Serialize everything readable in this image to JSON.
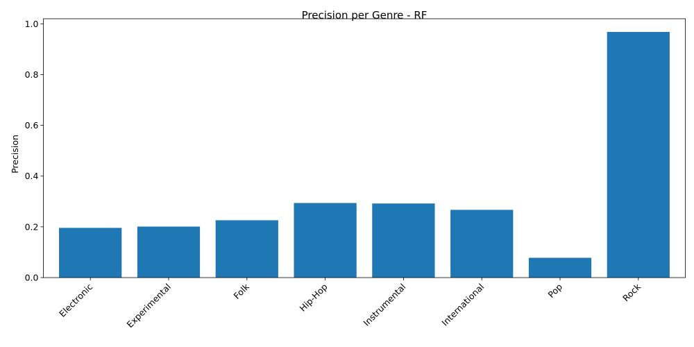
{
  "chart_data": {
    "type": "bar",
    "title": "Precision per Genre - RF",
    "xlabel": "",
    "ylabel": "Precision",
    "categories": [
      "Electronic",
      "Experimental",
      "Folk",
      "Hip-Hop",
      "Instrumental",
      "International",
      "Pop",
      "Rock"
    ],
    "values": [
      0.196,
      0.201,
      0.226,
      0.294,
      0.292,
      0.267,
      0.078,
      0.968
    ],
    "ylim": [
      0,
      1.02
    ],
    "yticks": [
      0.0,
      0.2,
      0.4,
      0.6,
      0.8,
      1.0
    ],
    "ytick_labels": [
      "0.0",
      "0.2",
      "0.4",
      "0.6",
      "0.8",
      "1.0"
    ],
    "xtick_rotation_deg": 45,
    "grid": false,
    "legend": "none",
    "bar_color": "#1f77b4",
    "axis_color": "#000000"
  }
}
